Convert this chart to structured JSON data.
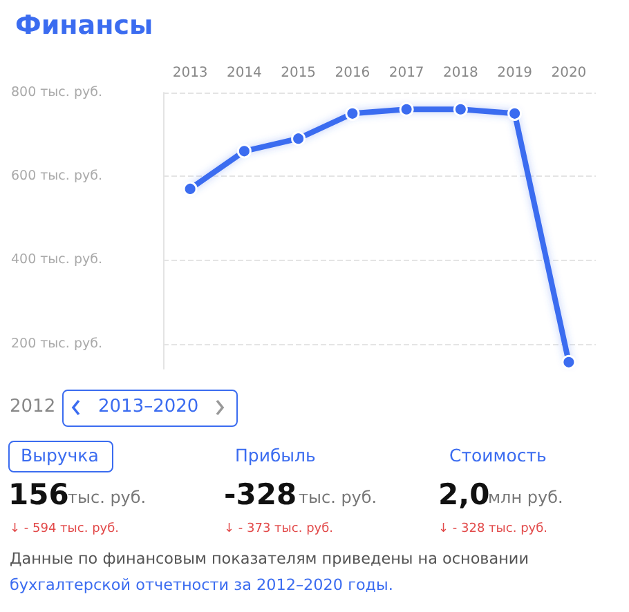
{
  "chart_data": {
    "type": "line",
    "title": "Финансы",
    "categories": [
      "2013",
      "2014",
      "2015",
      "2016",
      "2017",
      "2018",
      "2019",
      "2020"
    ],
    "series": [
      {
        "color": "#3b6cf0",
        "values": [
          570,
          660,
          690,
          750,
          760,
          760,
          750,
          156
        ]
      }
    ],
    "ylim": [
      140,
      800
    ],
    "yticks": [
      {
        "value": 200,
        "label": "200 тыс. руб."
      },
      {
        "value": 400,
        "label": "400 тыс. руб."
      },
      {
        "value": 600,
        "label": "600 тыс. руб."
      },
      {
        "value": 800,
        "label": "800 тыс. руб."
      }
    ],
    "grid": "y",
    "marker": "circle",
    "line_style": "solid",
    "annotations": [
      "2012",
      "2013–2020",
      "Выручка",
      "Прибыль",
      "Стоимость",
      "156",
      "тыс. руб.",
      "-328",
      "тыс. руб.",
      "2,0",
      "млн руб.",
      "↓ - 594 тыс. руб.",
      "↓ - 373 тыс. руб.",
      "↓ - 328 тыс. руб.",
      "Данные по финансовым показателям приведены на основании",
      "бухгалтерской отчетности за 2012–2020 годы."
    ]
  }
}
